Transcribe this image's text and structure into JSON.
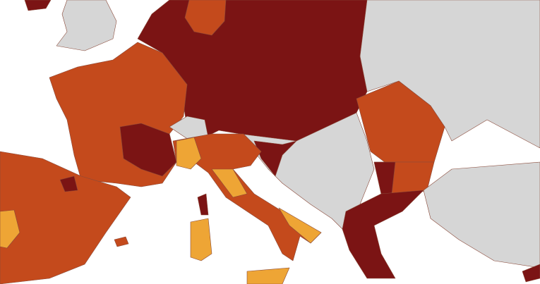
{
  "map": {
    "colors": {
      "sea": "#ffffff",
      "no_data": "#d6d6d6",
      "dark_red": "#7b1414",
      "orange": "#c44a1c",
      "yellow": "#eea535"
    }
  }
}
